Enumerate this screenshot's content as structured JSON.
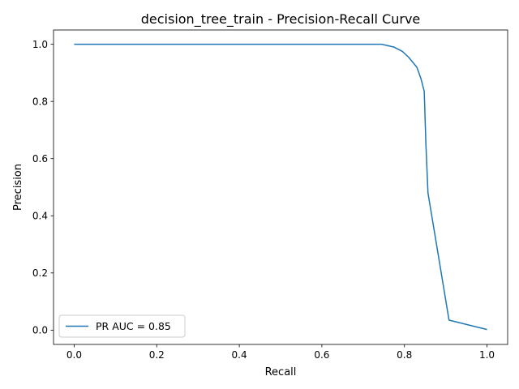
{
  "chart_data": {
    "type": "line",
    "title": "decision_tree_train - Precision-Recall Curve",
    "xlabel": "Recall",
    "ylabel": "Precision",
    "xlim": [
      -0.05,
      1.05
    ],
    "ylim": [
      -0.05,
      1.05
    ],
    "xticks": [
      "0.0",
      "0.2",
      "0.4",
      "0.6",
      "0.8",
      "1.0"
    ],
    "yticks": [
      "0.0",
      "0.2",
      "0.4",
      "0.6",
      "0.8",
      "1.0"
    ],
    "xtick_values": [
      0.0,
      0.2,
      0.4,
      0.6,
      0.8,
      1.0
    ],
    "ytick_values": [
      0.0,
      0.2,
      0.4,
      0.6,
      0.8,
      1.0
    ],
    "grid": false,
    "legend_position": "lower-left",
    "series": [
      {
        "name": "PR AUC = 0.85",
        "color": "#1f77b4",
        "x": [
          0.0,
          0.1,
          0.3,
          0.5,
          0.7,
          0.745,
          0.775,
          0.795,
          0.81,
          0.83,
          0.84,
          0.848,
          0.852,
          0.857,
          0.88,
          0.908,
          1.0
        ],
        "y": [
          1.0,
          1.0,
          1.0,
          1.0,
          1.0,
          1.0,
          0.99,
          0.975,
          0.955,
          0.92,
          0.88,
          0.835,
          0.65,
          0.48,
          0.28,
          0.035,
          0.002
        ]
      }
    ]
  }
}
